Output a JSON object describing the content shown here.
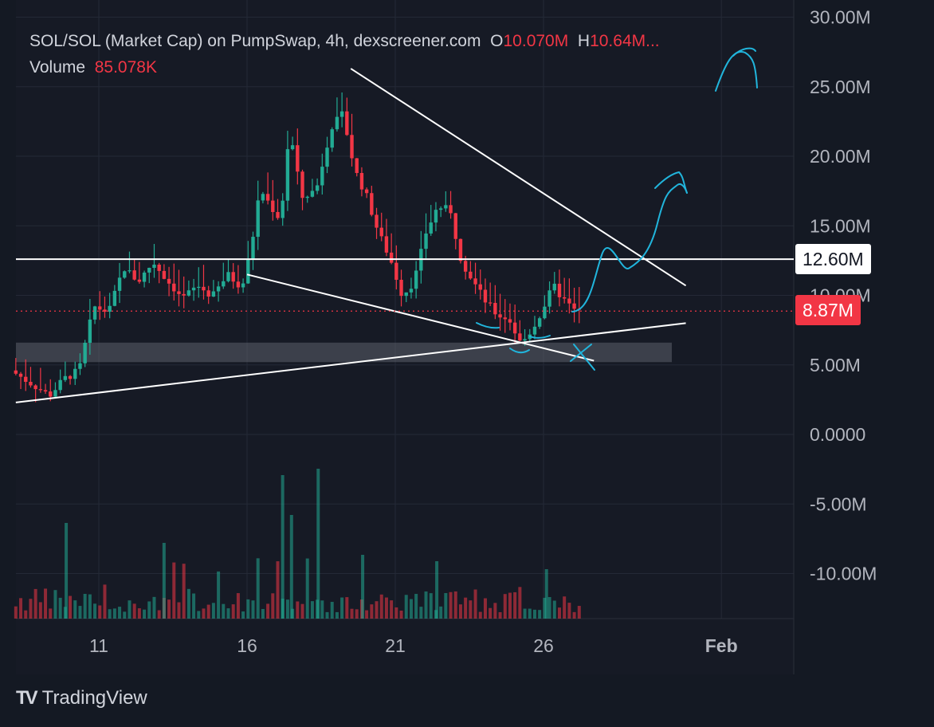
{
  "legend": {
    "symbol": "SOL/SOL (Market Cap) on PumpSwap, 4h, dexscreener.com",
    "open_label": "O",
    "open_value": "10.070M",
    "high_label": "H",
    "high_value": "10.64M...",
    "volume_label": "Volume",
    "volume_value": "85.078K"
  },
  "price_tags": {
    "level": "12.60M",
    "last": "8.87M"
  },
  "brand": {
    "name": "TradingView",
    "logo": "TV"
  },
  "colors": {
    "background": "#161a25",
    "up": "#22ab94",
    "down": "#f23645",
    "drawing_cyan": "#21b5dc",
    "trendline": "#ffffff",
    "axis_text": "#b2b5be"
  },
  "chart_data": {
    "type": "candlestick",
    "interval": "4h",
    "y_axis": {
      "ticks": [
        30000000,
        25000000,
        20000000,
        15000000,
        10000000,
        5000000,
        0,
        -5000000,
        -10000000
      ],
      "tick_labels": [
        "30.00M",
        "25.00M",
        "20.00M",
        "15.00M",
        "10.00M",
        "5.00M",
        "0.0000",
        "-5.00M",
        "-10.00M"
      ],
      "range": [
        -13500000,
        30500000
      ]
    },
    "x_axis": {
      "tick_labels": [
        "11",
        "16",
        "21",
        "26",
        "Feb"
      ],
      "range_days": [
        8.2,
        32.8
      ]
    },
    "horizontal_level": 12600000,
    "last_value": 8870000,
    "support_zone": [
      5200000,
      6600000
    ],
    "trendlines": [
      {
        "name": "descending-resistance",
        "from": [
          19.5,
          26300000
        ],
        "to": [
          30.8,
          10700000
        ]
      },
      {
        "name": "lower-wedge-line",
        "from": [
          16.0,
          11500000
        ],
        "to": [
          27.7,
          5300000
        ]
      },
      {
        "name": "rising-support",
        "from": [
          8.2,
          2300000
        ],
        "to": [
          30.8,
          8000000
        ]
      }
    ],
    "volume": {
      "series_name": "Volume",
      "max_value_approx": 1800000
    }
  }
}
